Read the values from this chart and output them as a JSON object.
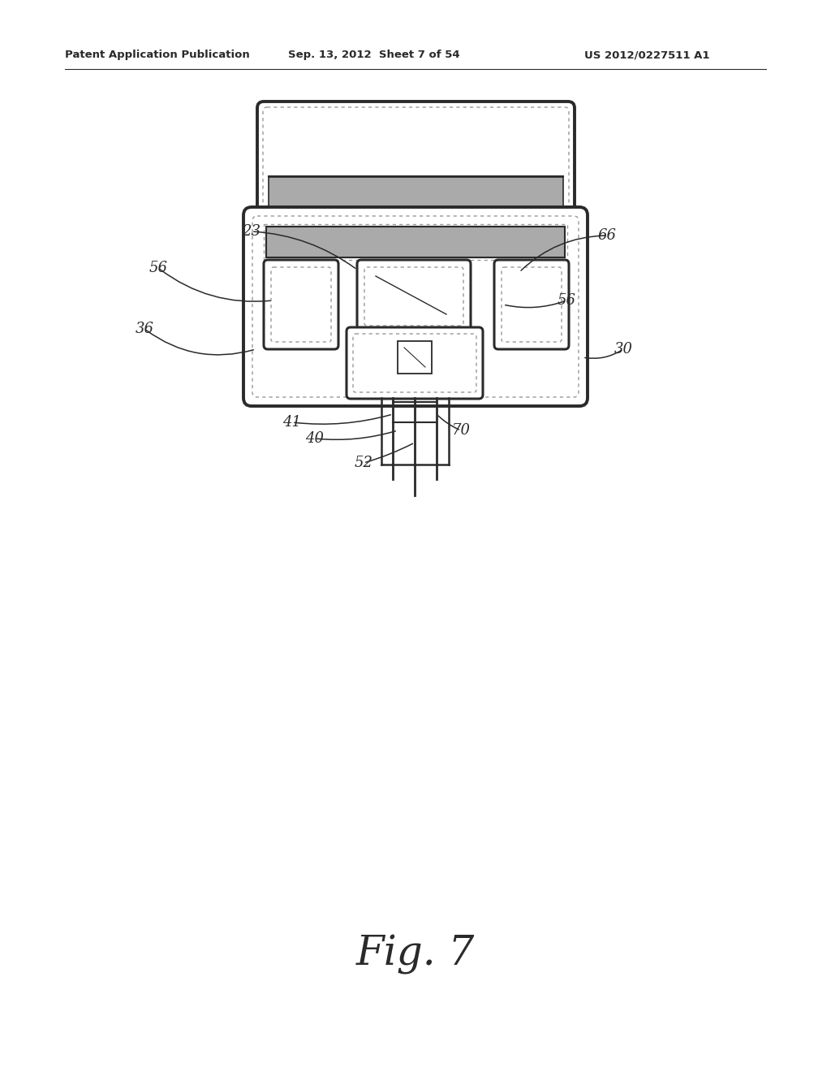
{
  "bg_color": "#ffffff",
  "line_color": "#2a2a2a",
  "gray_dark": "#888888",
  "gray_light": "#bbbbbb",
  "header_text": "Patent Application Publication",
  "header_date": "Sep. 13, 2012  Sheet 7 of 54",
  "header_patent": "US 2012/0227511 A1",
  "fig_label": "Fig. 7"
}
